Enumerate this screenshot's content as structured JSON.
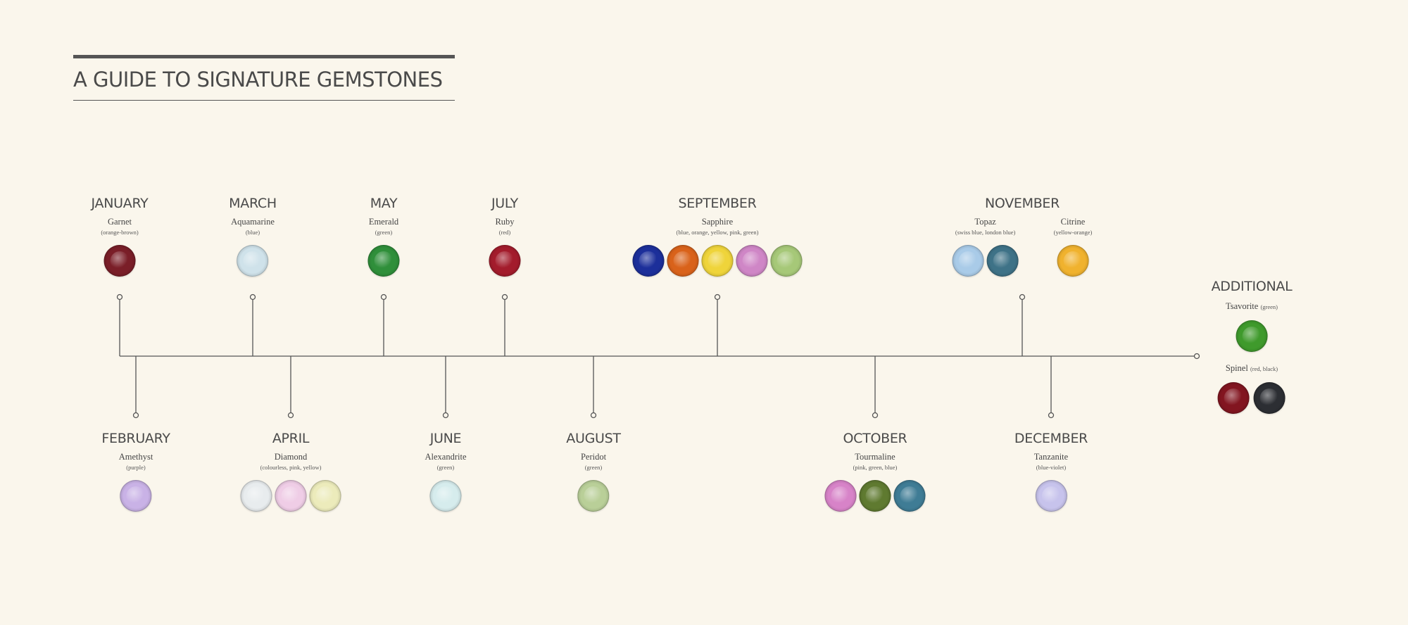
{
  "title": "A GUIDE TO SIGNATURE GEMSTONES",
  "top_months": [
    {
      "month": "JANUARY",
      "stones": [
        {
          "name": "Garnet",
          "colors": "(orange-brown)",
          "gems": [
            "#7a1e28"
          ]
        }
      ]
    },
    {
      "month": "MARCH",
      "stones": [
        {
          "name": "Aquamarine",
          "colors": "(blue)",
          "gems": [
            "#cfe2ea"
          ]
        }
      ]
    },
    {
      "month": "MAY",
      "stones": [
        {
          "name": "Emerald",
          "colors": "(green)",
          "gems": [
            "#2f8f3a"
          ]
        }
      ]
    },
    {
      "month": "JULY",
      "stones": [
        {
          "name": "Ruby",
          "colors": "(red)",
          "gems": [
            "#a31c2c"
          ]
        }
      ]
    },
    {
      "month": "SEPTEMBER",
      "stones": [
        {
          "name": "Sapphire",
          "colors": "(blue, orange, yellow, pink, green)",
          "gems": [
            "#1c2f9a",
            "#d9621a",
            "#efd43a",
            "#cf86c6",
            "#a6c878"
          ]
        }
      ]
    },
    {
      "month": "NOVEMBER",
      "stones": [
        {
          "name": "Topaz",
          "colors": "(swiss blue, london blue)",
          "gems": [
            "#a9cbe8",
            "#3e7287"
          ]
        },
        {
          "name": "Citrine",
          "colors": "(yellow-orange)",
          "gems": [
            "#f0b22e"
          ]
        }
      ]
    }
  ],
  "bottom_months": [
    {
      "month": "FEBRUARY",
      "stones": [
        {
          "name": "Amethyst",
          "colors": "(purple)",
          "gems": [
            "#c9b2e6"
          ]
        }
      ]
    },
    {
      "month": "APRIL",
      "stones": [
        {
          "name": "Diamond",
          "colors": "(colourless, pink, yellow)",
          "gems": [
            "#e8ecee",
            "#efcde6",
            "#ecebbb"
          ]
        }
      ]
    },
    {
      "month": "JUNE",
      "stones": [
        {
          "name": "Alexandrite",
          "colors": "(green)",
          "gems": [
            "#d6eced"
          ]
        }
      ]
    },
    {
      "month": "AUGUST",
      "stones": [
        {
          "name": "Peridot",
          "colors": "(green)",
          "gems": [
            "#b9cf98"
          ]
        }
      ]
    },
    {
      "month": "OCTOBER",
      "stones": [
        {
          "name": "Tourmaline",
          "colors": "(pink, green, blue)",
          "gems": [
            "#d783c8",
            "#5f7a30",
            "#3f7c95"
          ]
        }
      ]
    },
    {
      "month": "DECEMBER",
      "stones": [
        {
          "name": "Tanzanite",
          "colors": "(blue-violet)",
          "gems": [
            "#c7c3ec"
          ]
        }
      ]
    }
  ],
  "additional": {
    "heading": "ADDITIONAL",
    "stones": [
      {
        "name": "Tsavorite",
        "colors": "(green)",
        "gems": [
          "#3f9a2c"
        ]
      },
      {
        "name": "Spinel",
        "colors": "(red, black)",
        "gems": [
          "#821520",
          "#2c2e33"
        ]
      }
    ]
  },
  "colors": {
    "line": "#555555",
    "background": "#faf6ec",
    "text": "#4a4a4a"
  }
}
